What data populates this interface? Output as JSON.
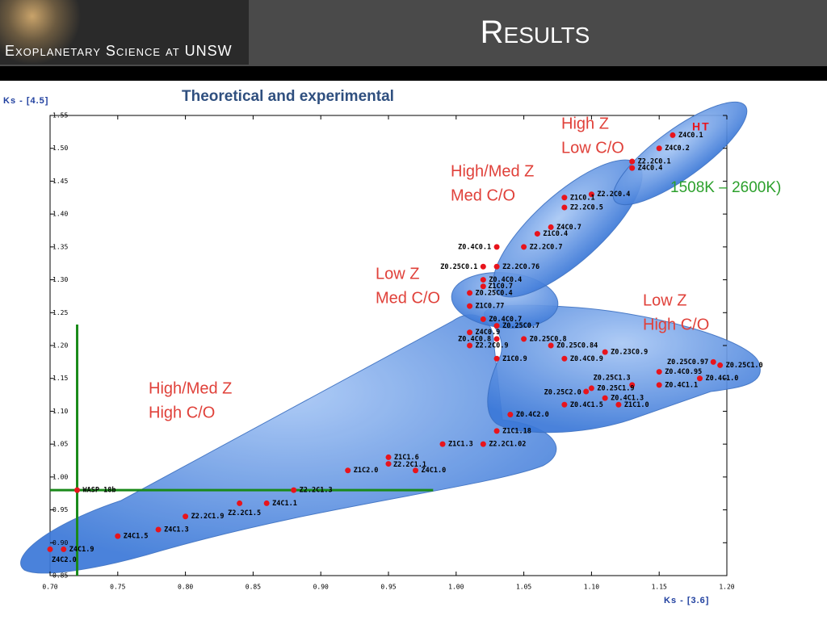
{
  "header": {
    "banner": "Exoplanetary Science at UNSW",
    "title": "Results"
  },
  "chart_data": {
    "type": "scatter",
    "subtitle": "Theoretical and experimental",
    "y_label": "Ks - [4.5]",
    "x_label": "Ks - [3.6]",
    "color": "#e8141c",
    "xlim": [
      0.7,
      1.2
    ],
    "ylim": [
      0.85,
      1.55
    ],
    "xticks": [
      {
        "value": 0.7,
        "label": "0.70"
      },
      0.75,
      {
        "value": 0.8,
        "label": "0.80"
      },
      0.85,
      {
        "value": 0.9,
        "label": "0.90"
      },
      0.95,
      {
        "value": 1,
        "label": "1.00"
      },
      1.05,
      {
        "value": 1.1,
        "label": "1.10"
      },
      1.15,
      {
        "value": 1.2,
        "label": "1.20"
      }
    ],
    "yticks": [
      0.85,
      {
        "value": 0.9,
        "label": "0.90"
      },
      0.95,
      {
        "value": 1,
        "label": "1.00"
      },
      1.05,
      {
        "value": 1.1,
        "label": "1.10"
      },
      1.15,
      {
        "value": 1.2,
        "label": "1.20"
      },
      1.25,
      {
        "value": 1.3,
        "label": "1.30"
      },
      1.35,
      {
        "value": 1.4,
        "label": "1.40"
      },
      1.45,
      {
        "value": 1.5,
        "label": "1.50"
      },
      1.55
    ],
    "labels": [
      "Z4C0.1",
      "Z4C0.2",
      "Z2.2C0.1",
      "Z4C0.4",
      "Z2.2C0.4",
      "Z1C0.1",
      "Z2.2C0.5",
      "Z4C0.7",
      "Z1C0.4",
      "Z0.4C0.1",
      "Z2.2C0.7",
      "Z0.25C0.1",
      "Z2.2C0.76",
      "Z0.4C0.4",
      "Z1C0.7",
      "Z0.25C0.4",
      "Z1C0.77",
      "Z0.4C0.7",
      "Z0.25C0.7",
      "Z4C0.9",
      "Z0.4C0.8",
      "Z2.2C0.9",
      "Z0.25C0.8",
      "Z0.25C0.84",
      "Z0.23C0.9",
      "Z1C0.9",
      "Z0.4C0.9",
      "Z0.25C0.97",
      "Z0.25C1.0",
      "Z0.4C0.95",
      "Z0.25C1.3",
      "Z0.4C1.0",
      "Z0.4C1.1",
      "Z0.25C1.9",
      "Z0.25C2.0",
      "Z0.4C1.3",
      "Z0.4C1.5",
      "Z1C1.0",
      "Z0.4C2.0",
      "Z1C1.18",
      "Z1C1.3",
      "Z2.2C1.02",
      "Z1C1.6",
      "Z2.2C1.1",
      "Z4C1.0",
      "Z1C2.0",
      "Z2.2C1.3",
      "WASP 18b",
      "Z4C1.1",
      "Z2.2C1.5",
      "Z2.2C1.9",
      "Z4C1.3",
      "Z4C1.5",
      "Z4C1.9",
      "Z4C2.0"
    ],
    "x": [
      1.16,
      1.15,
      1.13,
      1.13,
      1.1,
      1.08,
      1.08,
      1.07,
      1.06,
      1.03,
      1.05,
      1.02,
      1.03,
      1.02,
      1.02,
      1.01,
      1.01,
      1.02,
      1.03,
      1.01,
      1.03,
      1.01,
      1.05,
      1.07,
      1.11,
      1.03,
      1.08,
      1.19,
      1.195,
      1.15,
      1.13,
      1.18,
      1.15,
      1.1,
      1.096,
      1.11,
      1.08,
      1.12,
      1.04,
      1.03,
      0.99,
      1.02,
      0.95,
      0.95,
      0.97,
      0.92,
      0.88,
      0.72,
      0.86,
      0.84,
      0.8,
      0.78,
      0.75,
      0.71,
      0.7
    ],
    "values": [
      1.52,
      1.5,
      1.48,
      1.47,
      1.43,
      1.425,
      1.41,
      1.38,
      1.37,
      1.35,
      1.35,
      1.32,
      1.32,
      1.3,
      1.29,
      1.28,
      1.26,
      1.24,
      1.23,
      1.22,
      1.21,
      1.2,
      1.21,
      1.2,
      1.19,
      1.18,
      1.18,
      1.175,
      1.17,
      1.16,
      1.14,
      1.15,
      1.14,
      1.135,
      1.13,
      1.12,
      1.11,
      1.11,
      1.095,
      1.07,
      1.05,
      1.05,
      1.03,
      1.02,
      1.01,
      1.01,
      0.98,
      0.98,
      0.96,
      0.96,
      0.94,
      0.92,
      0.91,
      0.89,
      0.89
    ],
    "error_bars": {
      "color": "#1a8a1a",
      "x": [
        0.7,
        0.983
      ],
      "y": [
        0.85,
        1.232
      ]
    },
    "annotations": [
      {
        "lines": [
          "High Z",
          "Low C/O"
        ]
      },
      {
        "lines": [
          "High/Med Z",
          "Med C/O"
        ]
      },
      {
        "lines": [
          "Low Z",
          "Med C/O"
        ]
      },
      {
        "lines": [
          "Low Z",
          "High C/O"
        ]
      },
      {
        "lines": [
          "High/Med Z",
          "High C/O"
        ]
      }
    ],
    "ht_label": "HT",
    "temperature_range": "1508K – 2600K)"
  }
}
